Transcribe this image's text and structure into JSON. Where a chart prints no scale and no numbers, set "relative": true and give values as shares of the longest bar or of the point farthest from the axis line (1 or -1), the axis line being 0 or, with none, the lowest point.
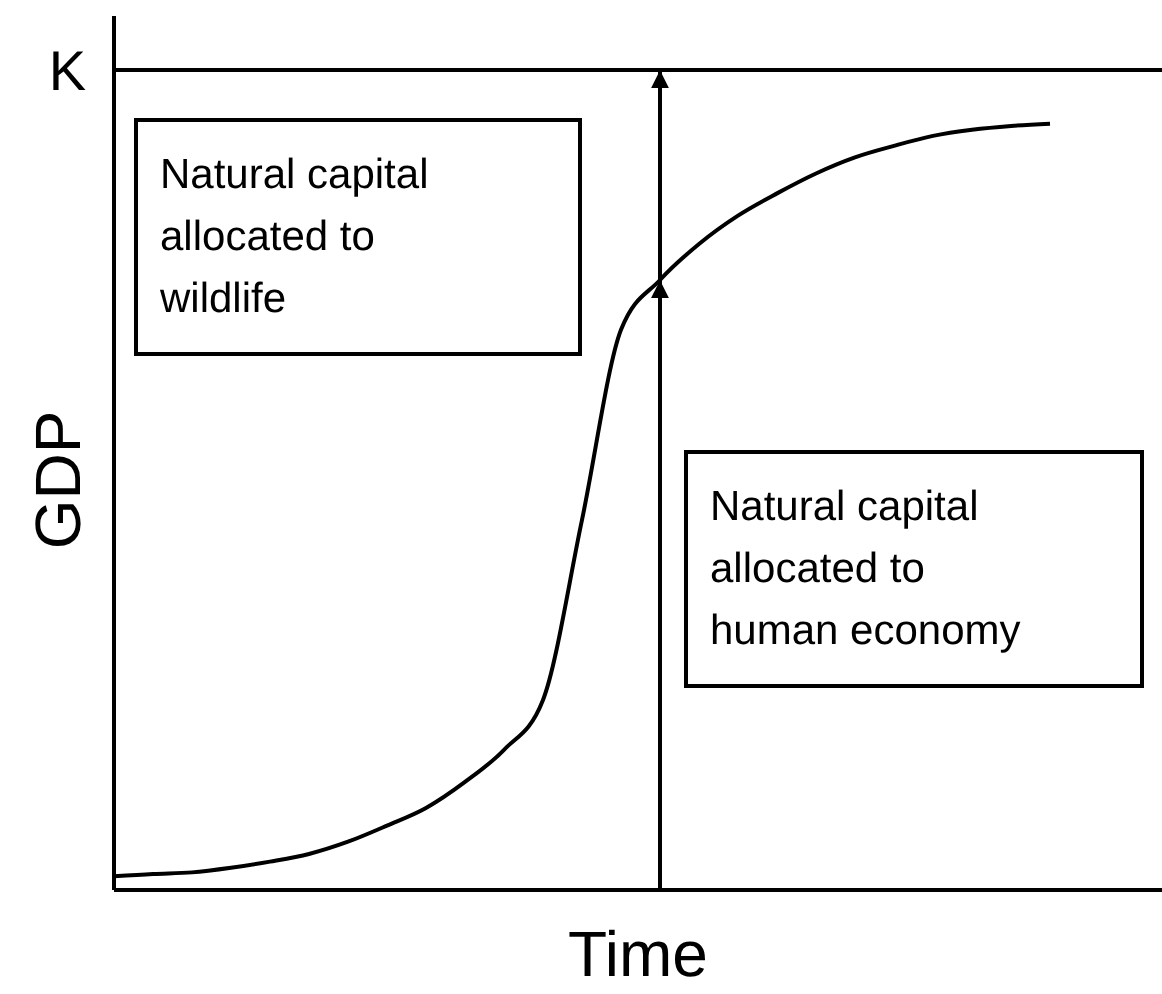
{
  "chart_data": {
    "type": "line",
    "relative": true,
    "xlabel": "Time",
    "ylabel": "GDP",
    "categories": [
      null,
      null,
      null,
      null,
      null,
      null,
      null,
      null,
      null,
      null,
      null,
      null,
      null,
      null,
      null,
      null,
      null,
      null,
      null,
      null,
      null,
      null,
      null,
      null,
      null
    ],
    "series": [
      {
        "color": "#000000",
        "values": [
          0.018,
          0.021,
          0.023,
          0.029,
          0.037,
          0.047,
          0.063,
          0.084,
          0.107,
          0.141,
          0.183,
          0.248,
          0.483,
          0.731,
          0.796,
          0.843,
          0.88,
          0.909,
          0.935,
          0.956,
          0.971,
          0.984,
          0.992,
          0.997,
          1
        ]
      }
    ],
    "ref_lines": [
      {
        "axis": "y",
        "value": 1.07,
        "label": "K",
        "color": "#000000"
      }
    ],
    "annotations": [
      "Natural capital allocated to wildlife",
      "Natural capital allocated to human economy"
    ],
    "marker": "none",
    "line_style": "solid"
  }
}
